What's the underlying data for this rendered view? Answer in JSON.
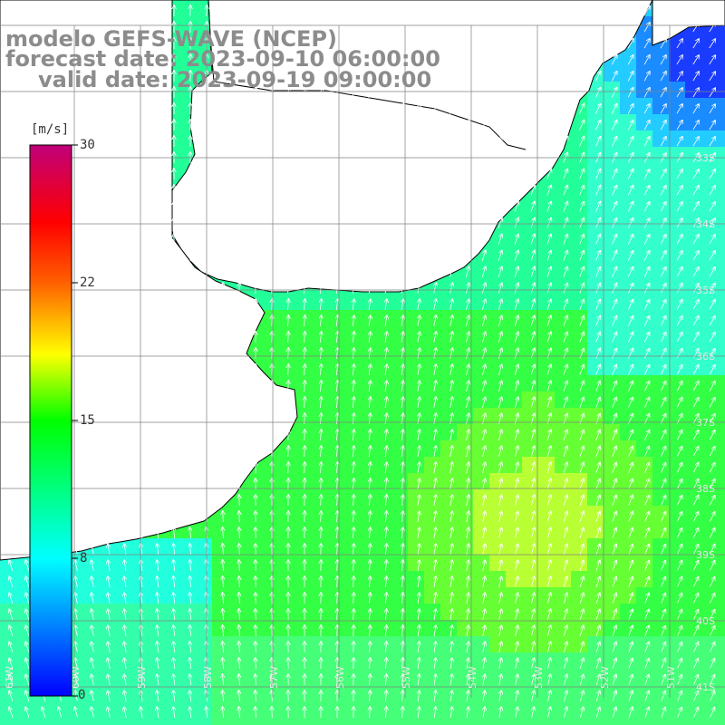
{
  "title": {
    "line1": "modelo GEFS-WAVE (NCEP)",
    "line2": "forecast date: 2023-09-10 06:00:00",
    "line3": "valid date: 2023-09-19 09:00:00"
  },
  "colorbar": {
    "unit": "[m/s]",
    "ticks": [
      "30",
      "22",
      "15",
      "8",
      "0"
    ],
    "stops": [
      "#0000ff",
      "#00ffff",
      "#00ff00",
      "#ffff00",
      "#ff8000",
      "#ff0000",
      "#c0007a"
    ]
  },
  "map": {
    "lat_labels": [
      "33S",
      "34S",
      "35S",
      "36S",
      "37S",
      "38S",
      "39S",
      "40S",
      "41S"
    ],
    "lon_labels": [
      "61W",
      "60W",
      "59W",
      "58W",
      "57W",
      "56W",
      "55W",
      "54W",
      "53W",
      "52W",
      "51W"
    ],
    "land_color": "#ffffff",
    "grid_color": "#808080"
  }
}
